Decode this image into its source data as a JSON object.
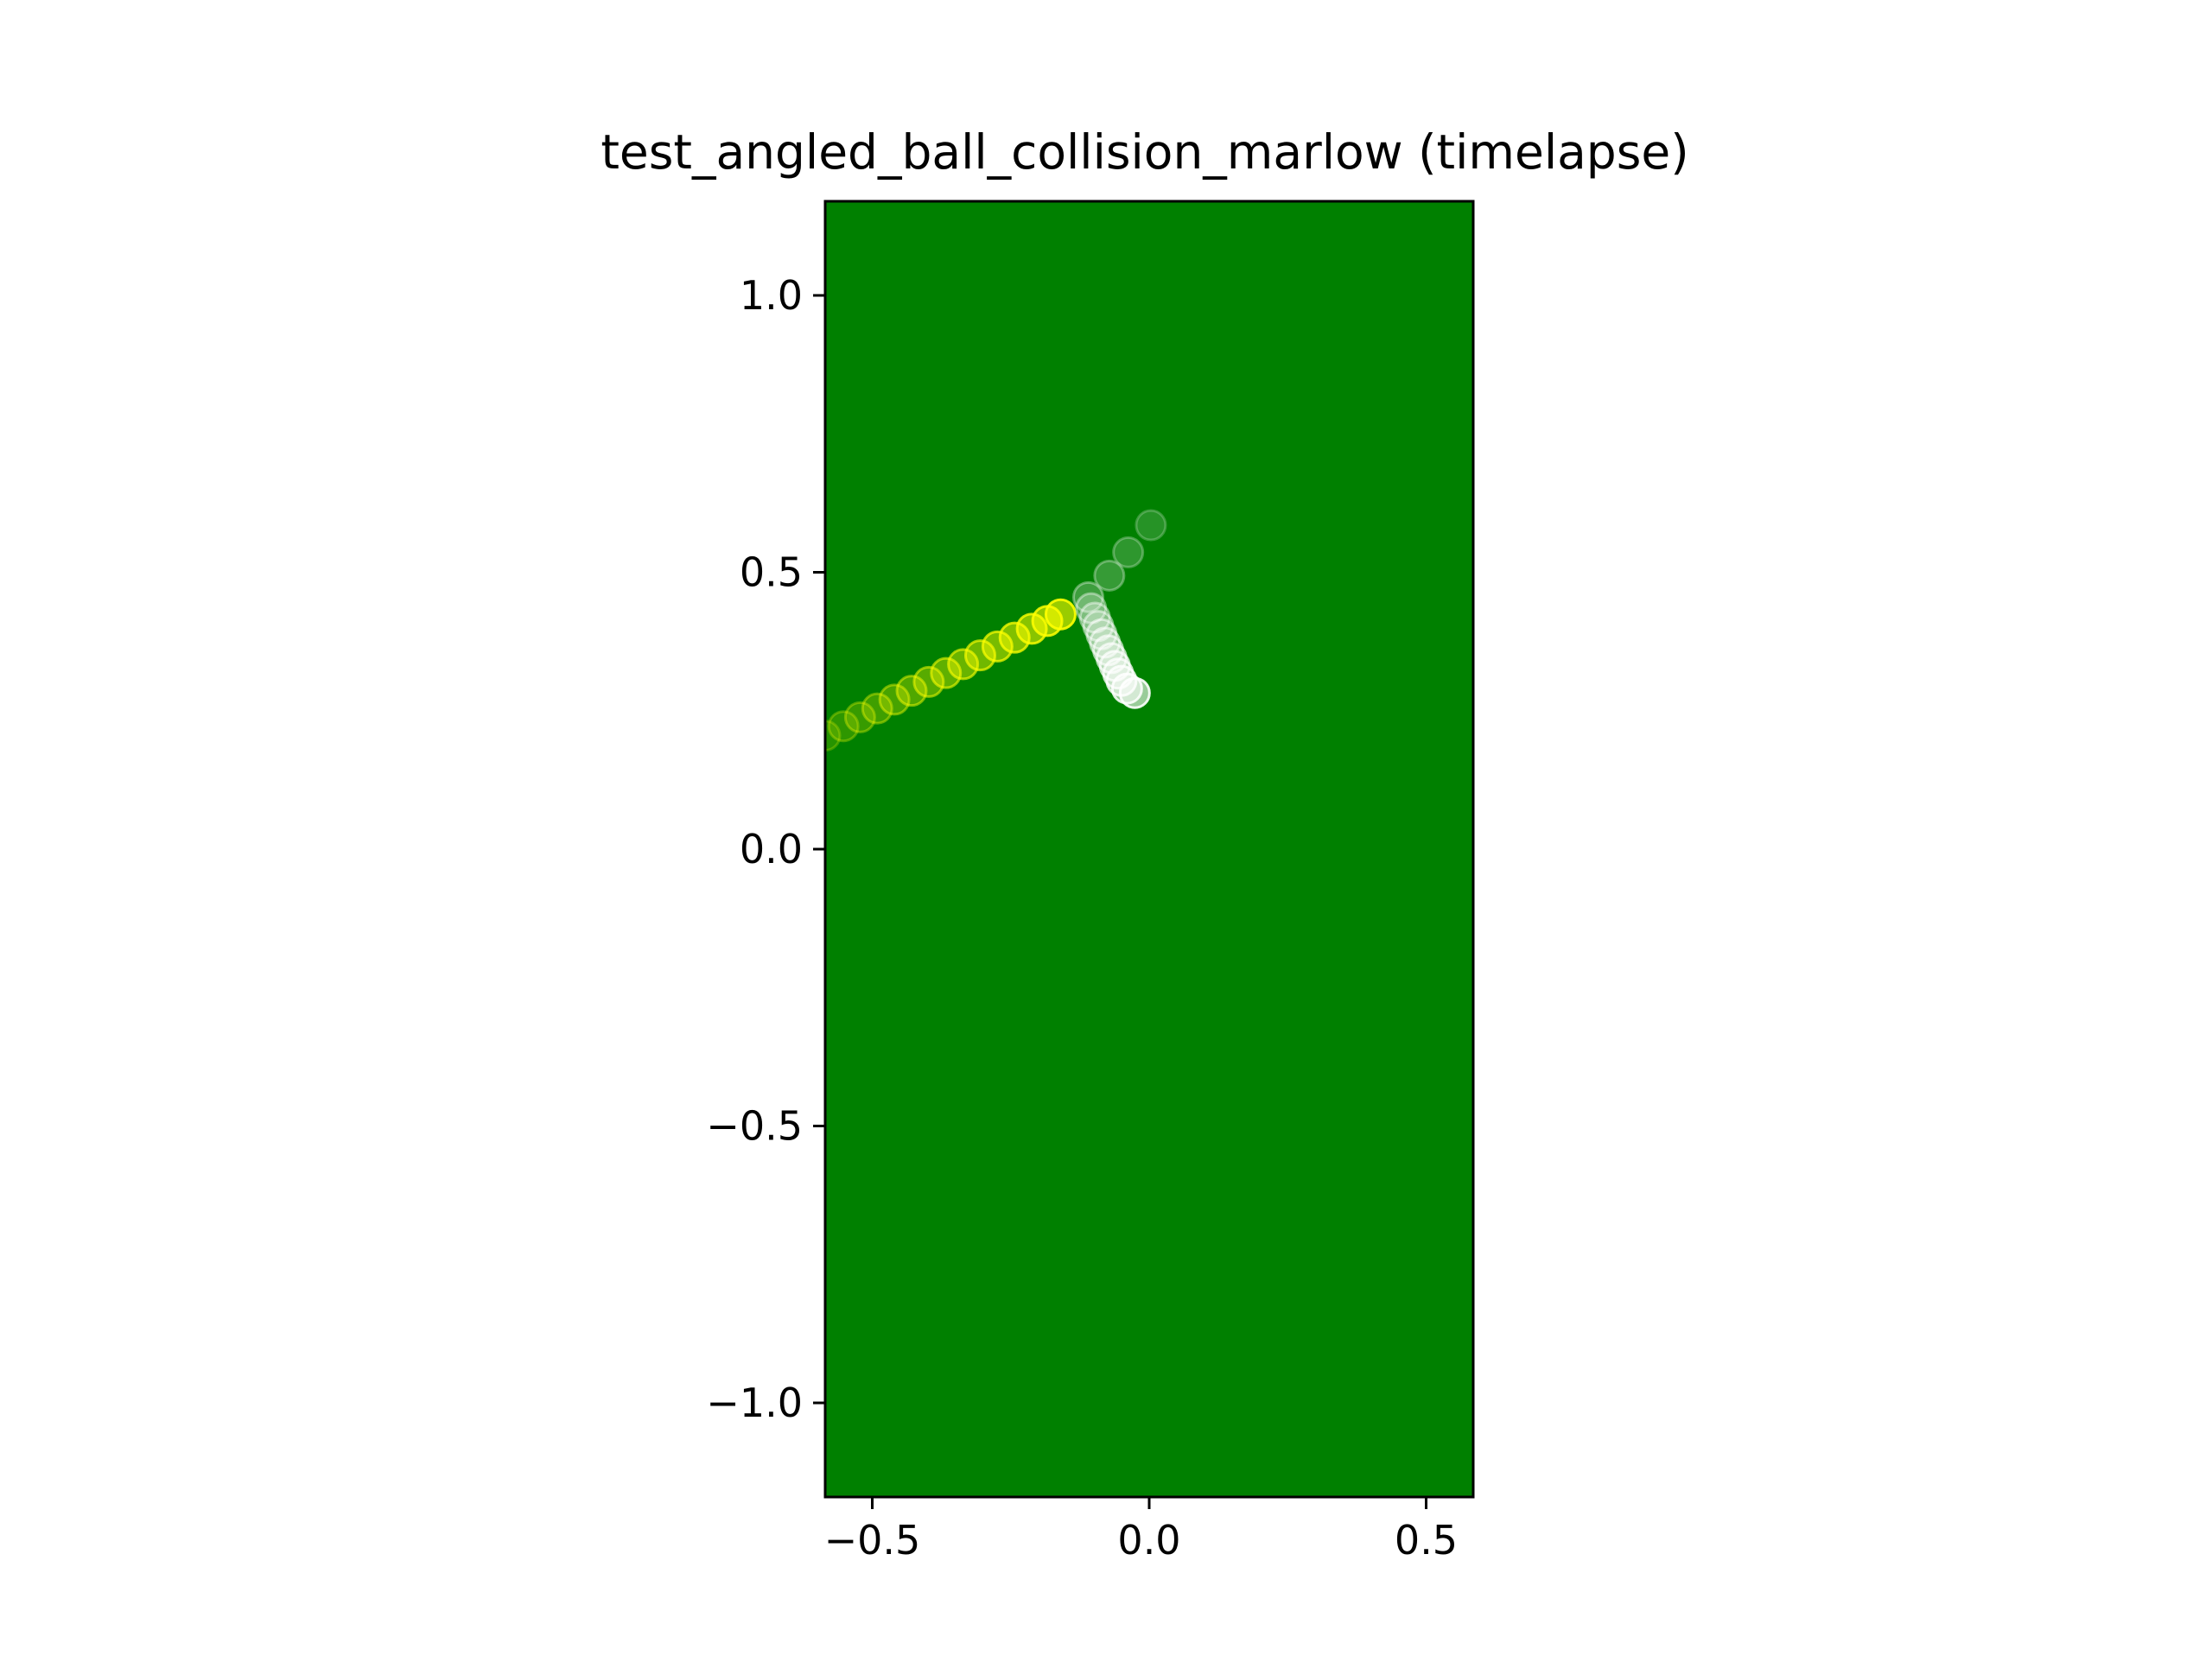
{
  "chart_data": {
    "type": "scatter",
    "title": "test_angled_ball_collision_marlow (timelapse)",
    "xlabel": "",
    "ylabel": "",
    "xlim": [
      -0.585,
      0.585
    ],
    "ylim": [
      -1.17,
      1.17
    ],
    "grid": false,
    "legend": "none",
    "aspect": "equal",
    "background_color": "#008000",
    "x_ticks": [
      {
        "value": -0.5,
        "label": "−0.5"
      },
      {
        "value": 0.0,
        "label": "0.0"
      },
      {
        "value": 0.5,
        "label": "0.5"
      }
    ],
    "y_ticks": [
      {
        "value": 1.0,
        "label": "1.0"
      },
      {
        "value": 0.5,
        "label": "0.5"
      },
      {
        "value": 0.0,
        "label": "0.0"
      },
      {
        "value": -0.5,
        "label": "−0.5"
      },
      {
        "value": -1.0,
        "label": "−1.0"
      }
    ],
    "series": [
      {
        "color": "#ffff00",
        "points": [
          [
            -0.585,
            0.205
          ],
          [
            -0.552,
            0.222
          ],
          [
            -0.522,
            0.238
          ],
          [
            -0.491,
            0.254
          ],
          [
            -0.46,
            0.27
          ],
          [
            -0.429,
            0.286
          ],
          [
            -0.398,
            0.302
          ],
          [
            -0.367,
            0.318
          ],
          [
            -0.336,
            0.334
          ],
          [
            -0.305,
            0.35
          ],
          [
            -0.274,
            0.366
          ],
          [
            -0.243,
            0.382
          ],
          [
            -0.212,
            0.398
          ],
          [
            -0.184,
            0.412
          ],
          [
            -0.16,
            0.424
          ]
        ],
        "opacity_start": 0.25,
        "opacity_end": 1.0
      },
      {
        "color": "#ffffff",
        "points": [
          [
            0.003,
            0.585
          ],
          [
            -0.038,
            0.536
          ],
          [
            -0.072,
            0.494
          ],
          [
            -0.11,
            0.455
          ],
          [
            -0.105,
            0.435
          ],
          [
            -0.098,
            0.418
          ],
          [
            -0.092,
            0.403
          ],
          [
            -0.086,
            0.388
          ],
          [
            -0.08,
            0.373
          ],
          [
            -0.074,
            0.359
          ],
          [
            -0.068,
            0.345
          ],
          [
            -0.062,
            0.331
          ],
          [
            -0.056,
            0.317
          ],
          [
            -0.05,
            0.304
          ],
          [
            -0.04,
            0.29
          ],
          [
            -0.026,
            0.282
          ]
        ],
        "opacity_start": 0.25,
        "opacity_end": 1.0
      }
    ]
  }
}
